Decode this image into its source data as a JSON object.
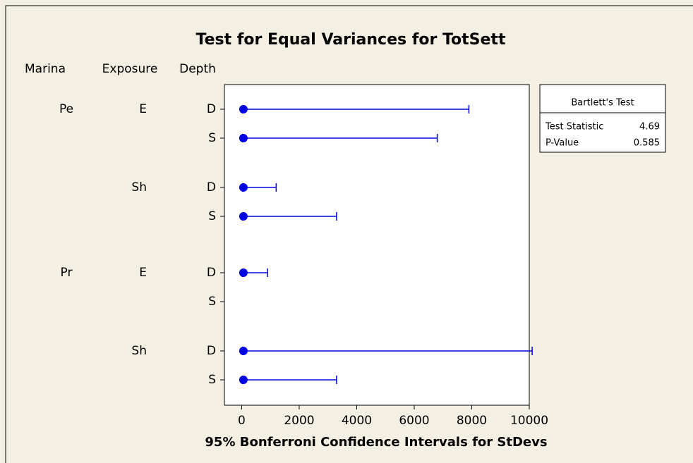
{
  "chart_data": {
    "type": "interval",
    "title": "Test for Equal Variances for TotSett",
    "column_headers": [
      "Marina",
      "Exposure",
      "Depth"
    ],
    "x_label": "95% Bonferroni Confidence Intervals for StDevs",
    "color": "#0000e6",
    "xlim": [
      -600,
      10000
    ],
    "xticks": [
      0,
      2000,
      4000,
      6000,
      8000,
      10000
    ],
    "rows": [
      {
        "marina": "Pe",
        "exposure": "E",
        "depth": "D",
        "lower": 30,
        "estimate": 60,
        "upper": 7900
      },
      {
        "marina": null,
        "exposure": null,
        "depth": "S",
        "lower": 30,
        "estimate": 60,
        "upper": 6800
      },
      {
        "marina": null,
        "exposure": "Sh",
        "depth": "D",
        "lower": 30,
        "estimate": 60,
        "upper": 1200
      },
      {
        "marina": null,
        "exposure": null,
        "depth": "S",
        "lower": 30,
        "estimate": 60,
        "upper": 3300
      },
      {
        "marina": "Pr",
        "exposure": "E",
        "depth": "D",
        "lower": 30,
        "estimate": 60,
        "upper": 900
      },
      {
        "marina": null,
        "exposure": null,
        "depth": "S",
        "lower": null,
        "estimate": null,
        "upper": null
      },
      {
        "marina": null,
        "exposure": "Sh",
        "depth": "D",
        "lower": 30,
        "estimate": 60,
        "upper": 10100
      },
      {
        "marina": null,
        "exposure": null,
        "depth": "S",
        "lower": 30,
        "estimate": 60,
        "upper": 3300
      }
    ],
    "legend": {
      "title": "Bartlett's Test",
      "rows": [
        [
          "Test Statistic",
          "4.69"
        ],
        [
          "P-Value",
          "0.585"
        ]
      ]
    }
  }
}
